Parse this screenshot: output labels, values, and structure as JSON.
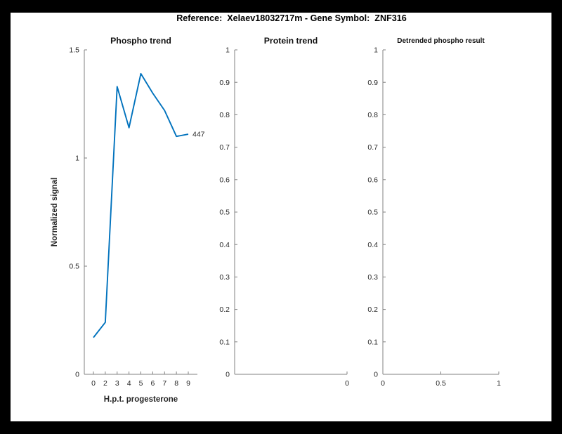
{
  "figure": {
    "title": "Reference:  Xelaev18032717m - Gene Symbol:  ZNF316",
    "background_color": "#000000",
    "paper_color": "#ffffff",
    "axis_color": "#808080",
    "text_color": "#262626",
    "line_color": "#0072BD"
  },
  "chart_data": [
    {
      "type": "line",
      "title": "Phospho trend",
      "xlabel": "H.p.t. progesterone",
      "ylabel": "Normalized signal",
      "categories": [
        "0",
        "2",
        "3",
        "4",
        "5",
        "6",
        "7",
        "8",
        "9"
      ],
      "values": [
        0.17,
        0.24,
        1.33,
        1.14,
        1.39,
        1.3,
        1.22,
        1.1,
        1.11
      ],
      "ylim": [
        0,
        1.5
      ],
      "y_tick_labels": [
        "0",
        "0.5",
        "1",
        "1.5"
      ],
      "y_tick_values": [
        0,
        0.5,
        1,
        1.5
      ],
      "end_label": "447",
      "grid": false,
      "legend": null
    },
    {
      "type": "line",
      "title": "Protein trend",
      "xlabel": "",
      "ylabel": "",
      "categories": [],
      "values": [],
      "ylim": [
        0,
        1
      ],
      "y_tick_labels": [
        "0",
        "0.1",
        "0.2",
        "0.3",
        "0.4",
        "0.5",
        "0.6",
        "0.7",
        "0.8",
        "0.9",
        "1"
      ],
      "x_tick_labels": [
        "0"
      ],
      "x_tick_position": "right-end",
      "grid": false,
      "legend": null
    },
    {
      "type": "line",
      "title": "Detrended phospho result",
      "xlabel": "",
      "ylabel": "",
      "categories": [],
      "values": [],
      "xlim": [
        0,
        1
      ],
      "ylim": [
        0,
        1
      ],
      "y_tick_labels": [
        "0",
        "0.1",
        "0.2",
        "0.3",
        "0.4",
        "0.5",
        "0.6",
        "0.7",
        "0.8",
        "0.9",
        "1"
      ],
      "x_tick_labels": [
        "0",
        "0.5",
        "1"
      ],
      "grid": false,
      "legend": null
    }
  ]
}
